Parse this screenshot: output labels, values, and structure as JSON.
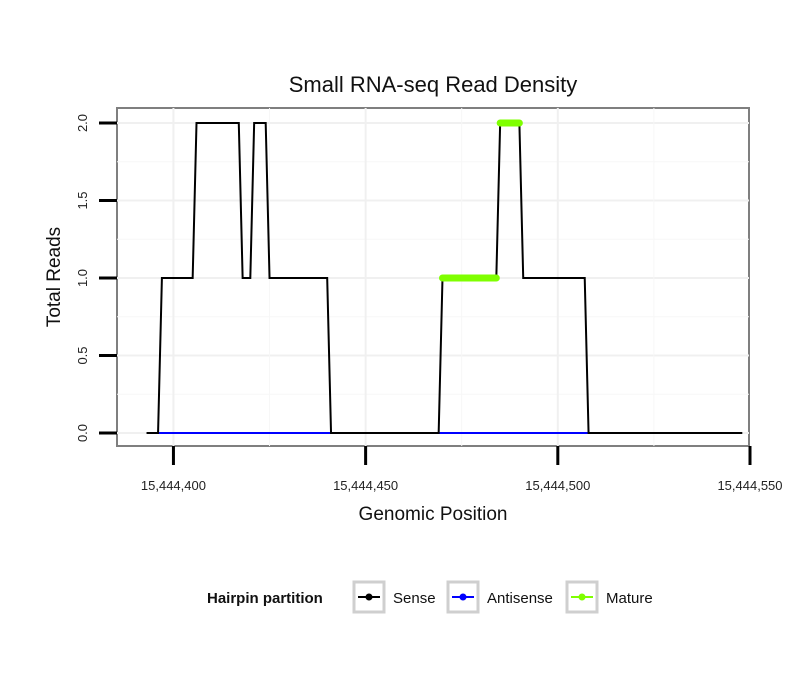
{
  "chart_data": {
    "type": "line",
    "title": "Small RNA-seq Read Density",
    "xlabel": "Genomic Position",
    "ylabel": "Total Reads",
    "xlim": [
      15444390,
      15444550
    ],
    "ylim": [
      0,
      2.1
    ],
    "x_ticks": [
      15444400,
      15444450,
      15444500,
      15444550
    ],
    "x_tick_labels": [
      "15,444,400",
      "15,444,450",
      "15,444,500",
      "15,444,550"
    ],
    "y_ticks": [
      0,
      0.5,
      1,
      1.5,
      2
    ],
    "y_tick_labels": [
      "0.0",
      "0.5",
      "1.0",
      "1.5",
      "2.0"
    ],
    "grid": true,
    "legend": {
      "title": "Hairpin partition",
      "position": "bottom",
      "entries": [
        "Sense",
        "Antisense",
        "Mature"
      ]
    },
    "series": [
      {
        "name": "Sense",
        "color": "#000000",
        "x": [
          15444393,
          15444396,
          15444397,
          15444405,
          15444406,
          15444417,
          15444418,
          15444420,
          15444421,
          15444424,
          15444425,
          15444440,
          15444441,
          15444469,
          15444470,
          15444484,
          15444485,
          15444490,
          15444491,
          15444507,
          15444508,
          15444548
        ],
        "y": [
          0,
          0,
          1,
          1,
          2,
          2,
          1,
          1,
          2,
          2,
          1,
          1,
          0,
          0,
          1,
          1,
          2,
          2,
          1,
          1,
          0,
          0
        ]
      },
      {
        "name": "Antisense",
        "color": "#0000ff",
        "x": [
          15444396,
          15444441,
          15444469,
          15444508
        ],
        "y": [
          0,
          0,
          0,
          0
        ]
      },
      {
        "name": "Mature",
        "color": "#7fff00",
        "x": [
          15444470,
          15444484,
          15444485,
          15444490
        ],
        "y": [
          1,
          1,
          2,
          2
        ]
      }
    ]
  }
}
